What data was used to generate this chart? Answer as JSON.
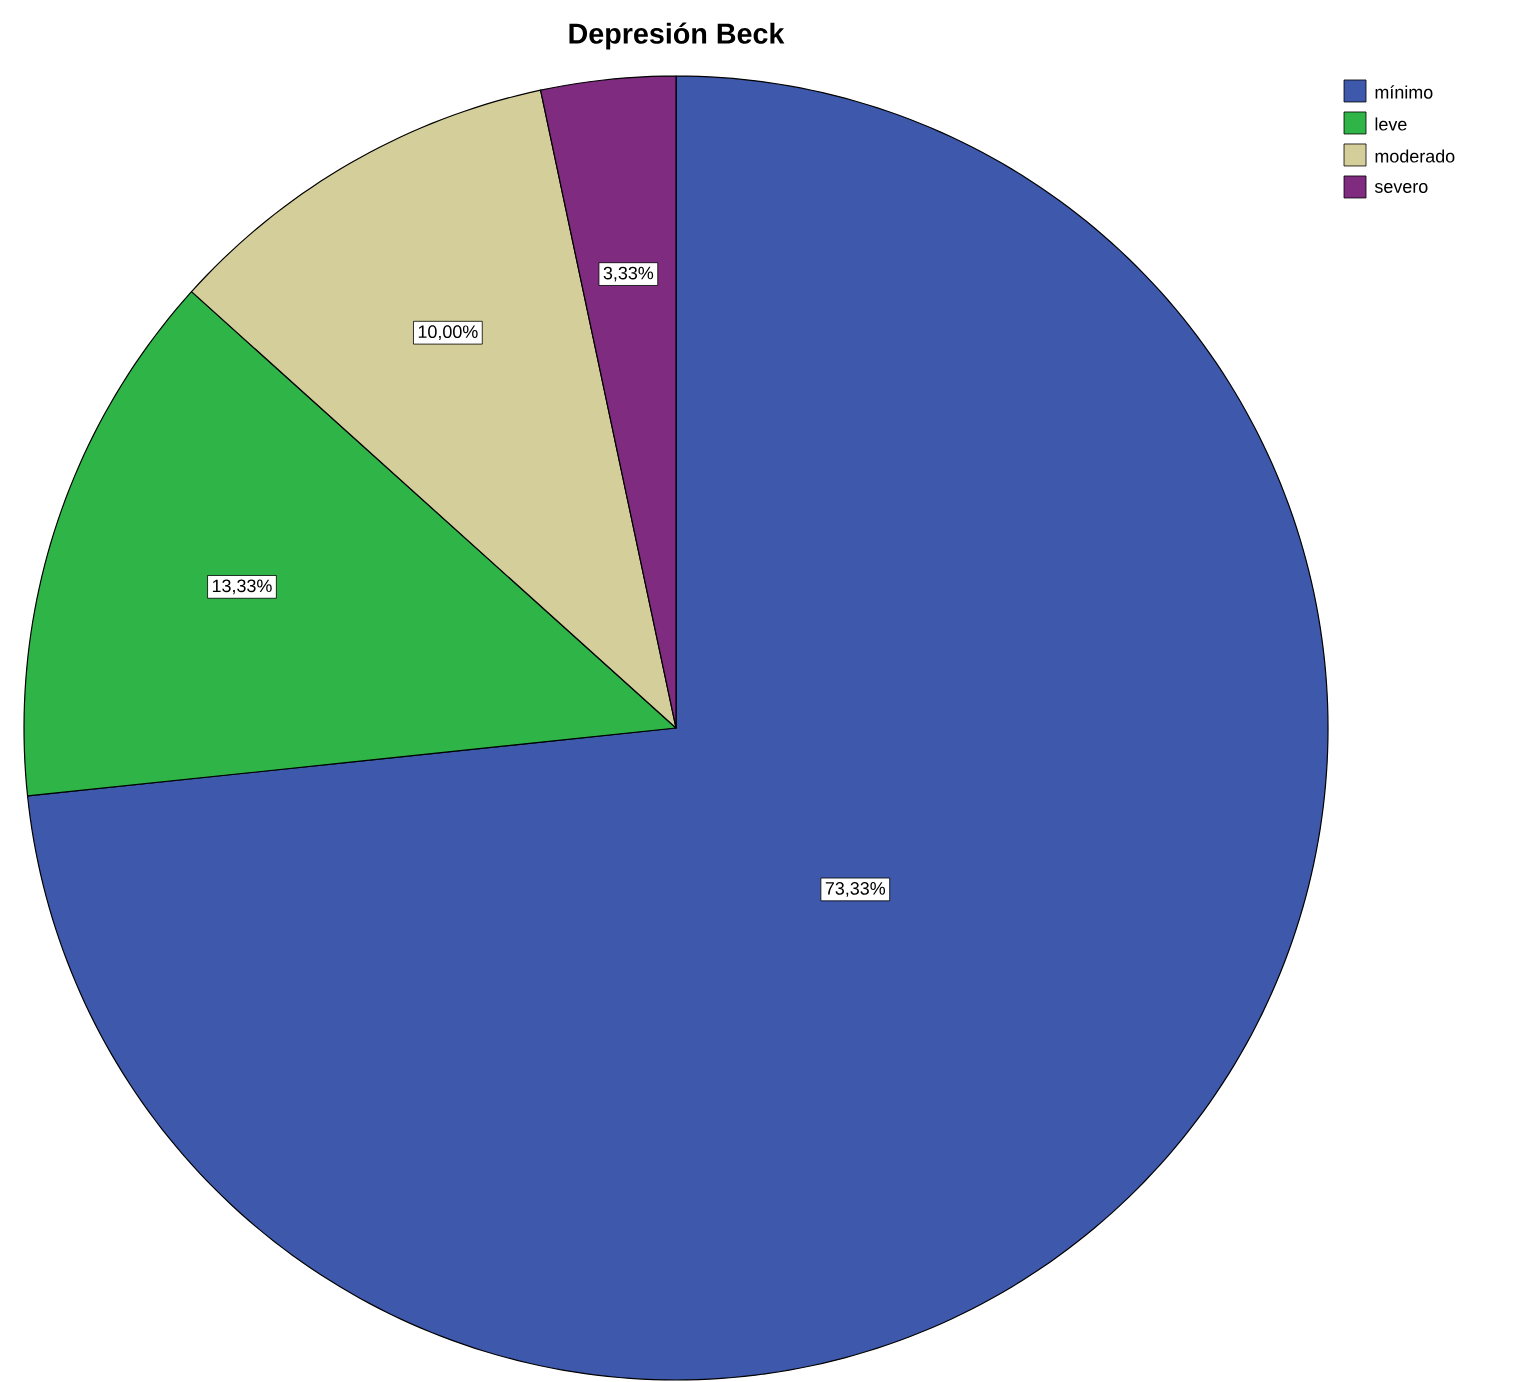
{
  "chart_data": {
    "type": "pie",
    "title": "Depresión Beck",
    "categories": [
      "mínimo",
      "leve",
      "moderado",
      "severo"
    ],
    "values": [
      73.33,
      13.33,
      10.0,
      3.33
    ],
    "colors": [
      "#3e58ac",
      "#2fb547",
      "#d4ce9a",
      "#7f2b7f"
    ],
    "value_labels": [
      "73,33%",
      "13,33%",
      "10,00%",
      "3,33%"
    ],
    "legend": "top right"
  }
}
